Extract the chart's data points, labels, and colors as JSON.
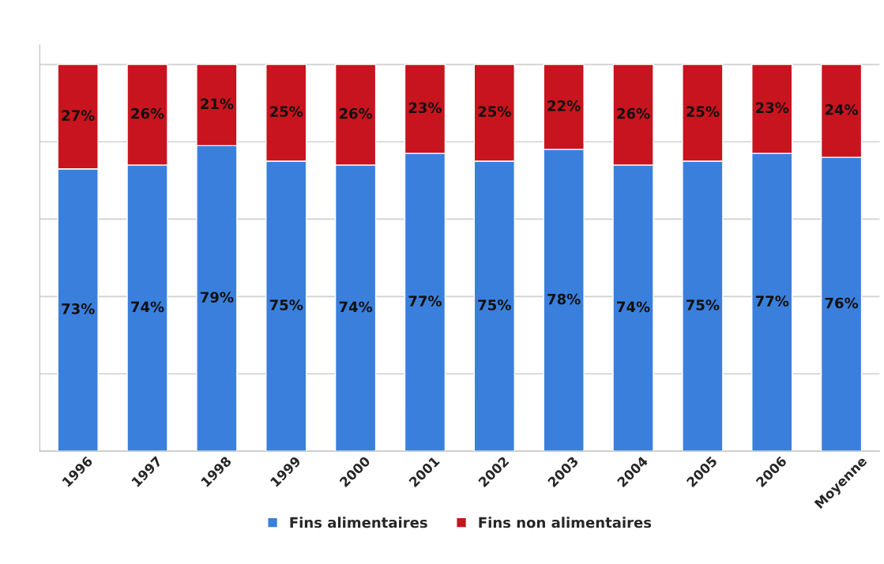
{
  "chart_data": {
    "type": "bar",
    "stacked": true,
    "categories": [
      "1996",
      "1997",
      "1998",
      "1999",
      "2000",
      "2001",
      "2002",
      "2003",
      "2004",
      "2005",
      "2006",
      "Moyenne"
    ],
    "series": [
      {
        "name": "Fins alimentaires",
        "color": "#3a7fdc",
        "values": [
          73,
          74,
          79,
          75,
          74,
          77,
          75,
          78,
          74,
          75,
          77,
          76
        ],
        "value_labels": [
          "73%",
          "74%",
          "79%",
          "75%",
          "74%",
          "77%",
          "75%",
          "78%",
          "74%",
          "75%",
          "77%",
          "76%"
        ]
      },
      {
        "name": "Fins non alimentaires",
        "color": "#c8141e",
        "values": [
          27,
          26,
          21,
          25,
          26,
          23,
          25,
          22,
          26,
          25,
          23,
          24
        ],
        "value_labels": [
          "27%",
          "26%",
          "21%",
          "25%",
          "26%",
          "23%",
          "25%",
          "22%",
          "26%",
          "25%",
          "23%",
          "24%"
        ]
      }
    ],
    "tick_labels": "x",
    "grid": "y",
    "legend": "bottom"
  }
}
